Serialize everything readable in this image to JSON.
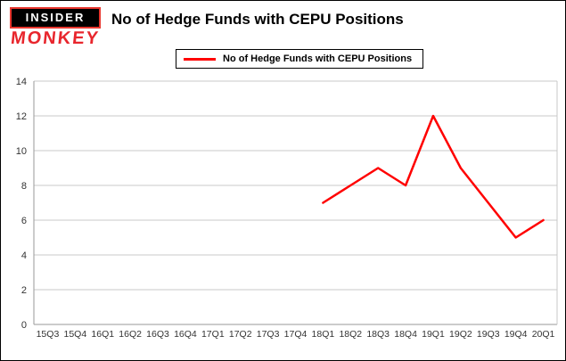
{
  "header": {
    "logo_top": "INSIDER",
    "logo_bottom": "MONKEY",
    "title": "No of Hedge Funds with CEPU Positions"
  },
  "legend": {
    "label": "No of Hedge Funds with CEPU Positions",
    "line_color": "#ff0000"
  },
  "chart_data": {
    "type": "line",
    "title": "No of Hedge Funds with CEPU Positions",
    "categories": [
      "15Q3",
      "15Q4",
      "16Q1",
      "16Q2",
      "16Q3",
      "16Q4",
      "17Q1",
      "17Q2",
      "17Q3",
      "17Q4",
      "18Q1",
      "18Q2",
      "18Q3",
      "18Q4",
      "19Q1",
      "19Q2",
      "19Q3",
      "19Q4",
      "20Q1"
    ],
    "series": [
      {
        "name": "No of Hedge Funds with CEPU Positions",
        "color": "#ff0000",
        "values": [
          null,
          null,
          null,
          null,
          null,
          null,
          null,
          null,
          null,
          null,
          7,
          8,
          9,
          8,
          12,
          9,
          7,
          5,
          6
        ]
      }
    ],
    "xlabel": "",
    "ylabel": "",
    "ylim": [
      0,
      14
    ],
    "ytick_step": 2,
    "grid": true,
    "legend_position": "top"
  },
  "colors": {
    "accent": "#ff0000",
    "grid": "#c9c9c9",
    "axis": "#9a9a9a",
    "background": "#ffffff"
  }
}
